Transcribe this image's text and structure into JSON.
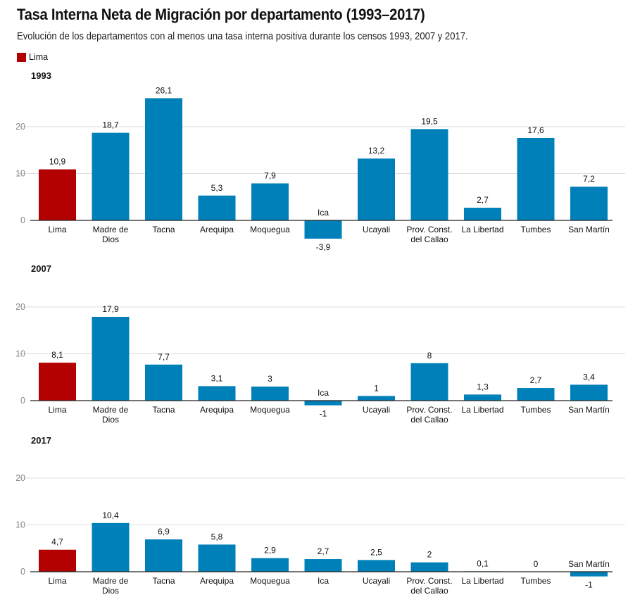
{
  "header": {
    "title": "Tasa Interna Neta de Migración por departamento (1993–2017)",
    "subtitle": "Evolución de los departamentos con al menos una tasa interna positiva durante los censos 1993, 2007 y 2017."
  },
  "legend": {
    "label": "Lima",
    "color": "#b30000"
  },
  "colors": {
    "highlight": "#b30000",
    "default": "#0080b8",
    "grid": "#dcdcdc",
    "axis": "#222222",
    "tick": "#888888"
  },
  "chart_data": [
    {
      "type": "bar",
      "title": "1993",
      "xlabel": "",
      "ylabel": "",
      "ylim": [
        -4,
        26.1
      ],
      "yticks": [
        0,
        10,
        20
      ],
      "grid": true,
      "legend": "top-left",
      "categories": [
        [
          "Lima"
        ],
        [
          "Madre de",
          "Dios"
        ],
        [
          "Tacna"
        ],
        [
          "Arequipa"
        ],
        [
          "Moquegua"
        ],
        [
          "Ica"
        ],
        [
          "Ucayali"
        ],
        [
          "Prov. Const.",
          "del Callao"
        ],
        [
          "La Libertad"
        ],
        [
          "Tumbes"
        ],
        [
          "San Martín"
        ]
      ],
      "values": [
        10.9,
        18.7,
        26.1,
        5.3,
        7.9,
        -3.9,
        13.2,
        19.5,
        2.7,
        17.6,
        7.2
      ],
      "labels": [
        "10,9",
        "18,7",
        "26,1",
        "5,3",
        "7,9",
        "-3,9",
        "13,2",
        "19,5",
        "2,7",
        "17,6",
        "7,2"
      ],
      "highlight": [
        "Lima"
      ]
    },
    {
      "type": "bar",
      "title": "2007",
      "xlabel": "",
      "ylabel": "",
      "ylim": [
        -1,
        26.1
      ],
      "yticks": [
        0,
        10,
        20
      ],
      "grid": true,
      "categories": [
        [
          "Lima"
        ],
        [
          "Madre de",
          "Dios"
        ],
        [
          "Tacna"
        ],
        [
          "Arequipa"
        ],
        [
          "Moquegua"
        ],
        [
          "Ica"
        ],
        [
          "Ucayali"
        ],
        [
          "Prov. Const.",
          "del Callao"
        ],
        [
          "La Libertad"
        ],
        [
          "Tumbes"
        ],
        [
          "San Martín"
        ]
      ],
      "values": [
        8.1,
        17.9,
        7.7,
        3.1,
        3,
        -1,
        1,
        8,
        1.3,
        2.7,
        3.4
      ],
      "labels": [
        "8,1",
        "17,9",
        "7,7",
        "3,1",
        "3",
        "-1",
        "1",
        "8",
        "1,3",
        "2,7",
        "3,4"
      ],
      "highlight": [
        "Lima"
      ]
    },
    {
      "type": "bar",
      "title": "2017",
      "xlabel": "",
      "ylabel": "",
      "ylim": [
        -1,
        26.1
      ],
      "yticks": [
        0,
        10,
        20
      ],
      "grid": true,
      "categories": [
        [
          "Lima"
        ],
        [
          "Madre de",
          "Dios"
        ],
        [
          "Tacna"
        ],
        [
          "Arequipa"
        ],
        [
          "Moquegua"
        ],
        [
          "Ica"
        ],
        [
          "Ucayali"
        ],
        [
          "Prov. Const.",
          "del Callao"
        ],
        [
          "La Libertad"
        ],
        [
          "Tumbes"
        ],
        [
          "San Martín"
        ]
      ],
      "values": [
        4.7,
        10.4,
        6.9,
        5.8,
        2.9,
        2.7,
        2.5,
        2,
        0.1,
        0,
        -1
      ],
      "labels": [
        "4,7",
        "10,4",
        "6,9",
        "5,8",
        "2,9",
        "2,7",
        "2,5",
        "2",
        "0,1",
        "0",
        "-1"
      ],
      "highlight": [
        "Lima"
      ]
    }
  ]
}
